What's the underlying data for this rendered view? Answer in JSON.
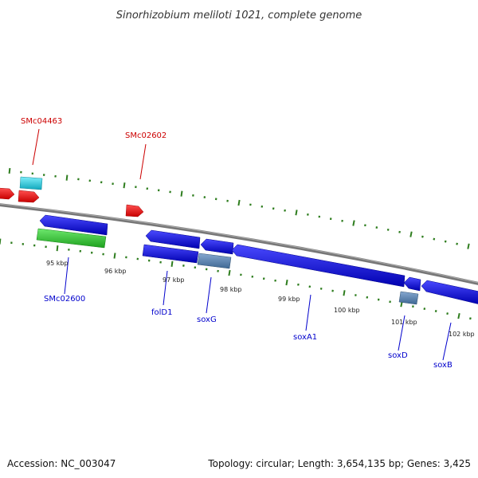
{
  "title": "Sinorhizobium meliloti 1021, complete genome",
  "footer": {
    "accession": "Accession: NC_003047",
    "summary": "Topology: circular; Length: 3,654,135 bp; Genes: 3,425"
  },
  "colors": {
    "backbone": "#7a7a7a",
    "tick": "#2e7d1e",
    "forward_label": "#cc0000",
    "reverse_label": "#0000cc",
    "red_feature": "#ff1010",
    "cyan_feature": "#22cce0",
    "green_feature": "#33cc33",
    "blue_feature": "#1a1ae6",
    "steel_feature": "#5a85b5"
  },
  "scale": {
    "unit": "kbp",
    "tick_labels": [
      "95 kbp",
      "96 kbp",
      "97 kbp",
      "98 kbp",
      "99 kbp",
      "100 kbp",
      "101 kbp",
      "102 kbp"
    ]
  },
  "gene_labels": [
    {
      "text": "SMc04463",
      "strand": "forward"
    },
    {
      "text": "SMc02602",
      "strand": "forward"
    },
    {
      "text": "SMc02600",
      "strand": "reverse"
    },
    {
      "text": "folD1",
      "strand": "reverse"
    },
    {
      "text": "soxG",
      "strand": "reverse"
    },
    {
      "text": "soxA1",
      "strand": "reverse"
    },
    {
      "text": "soxD",
      "strand": "reverse"
    },
    {
      "text": "soxB",
      "strand": "reverse"
    }
  ]
}
